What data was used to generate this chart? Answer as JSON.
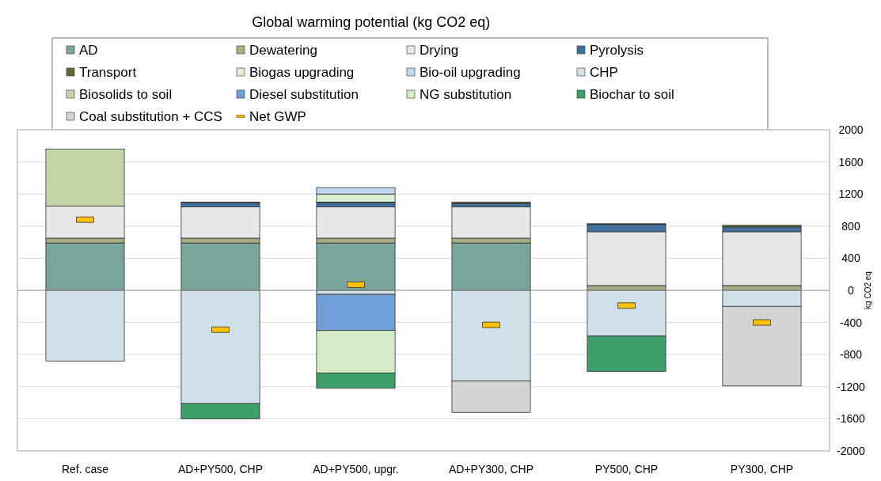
{
  "chart_data": {
    "type": "bar",
    "stacked": true,
    "title": "Global warming potential  (kg CO2 eq)",
    "ylabel": "kg CO2 eq",
    "categories": [
      "Ref. case",
      "AD+PY500, CHP",
      "AD+PY500, upgr.",
      "AD+PY300, CHP",
      "PY500, CHP",
      "PY300, CHP"
    ],
    "series": [
      {
        "name": "AD",
        "color": "#7aa59a",
        "values": [
          590,
          590,
          590,
          590,
          null,
          null
        ]
      },
      {
        "name": "Dewatering",
        "color": "#a9ad84",
        "values": [
          60,
          60,
          60,
          60,
          60,
          60
        ]
      },
      {
        "name": "Drying",
        "color": "#e8e6e8",
        "values": [
          400,
          390,
          390,
          390,
          670,
          670
        ]
      },
      {
        "name": "Pyrolysis",
        "color": "#41719c",
        "values": [
          null,
          50,
          50,
          40,
          90,
          60
        ]
      },
      {
        "name": "Transport",
        "color": "#5e6b3f",
        "values": [
          null,
          10,
          10,
          20,
          10,
          20
        ]
      },
      {
        "name": "Biogas upgrading",
        "color": "#d9efd0",
        "values": [
          null,
          null,
          100,
          null,
          null,
          null
        ]
      },
      {
        "name": "Bio-oil upgrading",
        "color": "#bdd7ee",
        "values": [
          null,
          null,
          80,
          null,
          null,
          null
        ]
      },
      {
        "name": "CHP",
        "color": "#d0e0e8",
        "values": [
          -880,
          -1410,
          -50,
          -1130,
          -570,
          -200
        ]
      },
      {
        "name": "Biosolids to soil",
        "color": "#c5d5a8",
        "values": [
          710,
          null,
          null,
          null,
          null,
          null
        ]
      },
      {
        "name": "Diesel substitution",
        "color": "#6f9fd6",
        "values": [
          null,
          null,
          -450,
          null,
          null,
          null
        ]
      },
      {
        "name": "NG substitution",
        "color": "#d6ebc8",
        "values": [
          null,
          null,
          -530,
          null,
          null,
          null
        ]
      },
      {
        "name": "Biochar to soil",
        "color": "#3f9f6a",
        "values": [
          null,
          -190,
          -190,
          null,
          -440,
          null
        ]
      },
      {
        "name": "Coal substitution + CCS",
        "color": "#d4d4d4",
        "values": [
          null,
          null,
          null,
          -390,
          null,
          -990
        ]
      },
      {
        "name": "Net GWP",
        "type": "scatter",
        "marker": "square",
        "color": "#ffc000",
        "values": [
          880,
          -490,
          70,
          -430,
          -190,
          -400
        ]
      }
    ],
    "ylim": [
      -2000,
      2000
    ],
    "yticks": [
      -2000,
      -1600,
      -1200,
      -800,
      -400,
      0,
      400,
      800,
      1200,
      1600,
      2000
    ],
    "grid": "y",
    "legend": "top"
  }
}
